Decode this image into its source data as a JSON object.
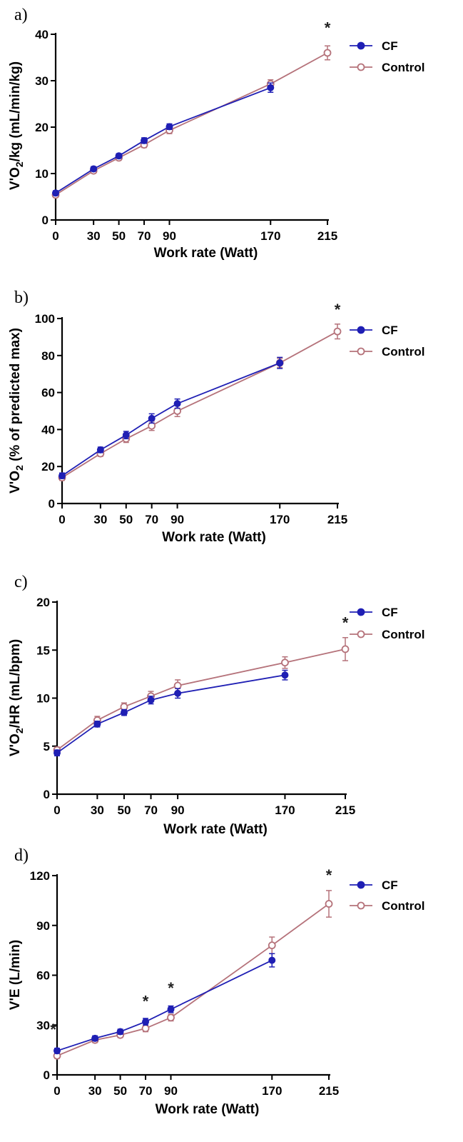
{
  "colors": {
    "cf": "#1f1fb4",
    "control": "#b5727a",
    "axis": "#000000"
  },
  "legend": [
    {
      "name": "CF",
      "marker": "filled-circle"
    },
    {
      "name": "Control",
      "marker": "open-circle"
    }
  ],
  "chart_data": [
    {
      "type": "line",
      "panel_label": "a)",
      "xlabel": "Work rate (Watt)",
      "ylabel": {
        "pre": "V'O",
        "sub": "2",
        "post": "/kg (mL/min/kg)"
      },
      "x_ticks": [
        "0",
        "30",
        "50",
        "70",
        "90",
        "170",
        "215"
      ],
      "ylim": [
        0,
        40
      ],
      "y_ticks": [
        "0",
        "10",
        "20",
        "30",
        "40"
      ],
      "series": [
        {
          "name": "CF",
          "x": [
            0,
            30,
            50,
            70,
            90,
            170
          ],
          "values": [
            5.8,
            11.0,
            13.8,
            17.1,
            20.1,
            28.5
          ],
          "err": [
            0.5,
            0.5,
            0.5,
            0.6,
            0.6,
            1.0
          ]
        },
        {
          "name": "Control",
          "x": [
            0,
            30,
            50,
            70,
            90,
            170,
            215
          ],
          "values": [
            5.4,
            10.6,
            13.4,
            16.2,
            19.3,
            29.3,
            36.0
          ],
          "err": [
            0.5,
            0.5,
            0.5,
            0.6,
            0.7,
            0.9,
            1.5
          ]
        }
      ],
      "significance": [
        {
          "x": 215,
          "y": 40.2,
          "text": "*"
        }
      ]
    },
    {
      "type": "line",
      "panel_label": "b)",
      "xlabel": "Work rate (Watt)",
      "ylabel": {
        "pre": "V'O",
        "sub": "2",
        "post": " (% of predicted max)"
      },
      "x_ticks": [
        "0",
        "30",
        "50",
        "70",
        "90",
        "170",
        "215"
      ],
      "ylim": [
        0,
        100
      ],
      "y_ticks": [
        "0",
        "20",
        "40",
        "60",
        "80",
        "100"
      ],
      "series": [
        {
          "name": "CF",
          "x": [
            0,
            30,
            50,
            70,
            90,
            170
          ],
          "values": [
            15,
            29,
            37,
            46,
            54,
            76
          ],
          "err": [
            1.5,
            1.5,
            2,
            2.5,
            2.5,
            3
          ]
        },
        {
          "name": "Control",
          "x": [
            0,
            30,
            50,
            70,
            90,
            170,
            215
          ],
          "values": [
            14,
            27,
            35,
            42,
            50,
            76,
            93
          ],
          "err": [
            1.5,
            1.5,
            2,
            2.5,
            3,
            2.5,
            4
          ]
        }
      ],
      "significance": [
        {
          "x": 215,
          "y": 102,
          "text": "*"
        }
      ]
    },
    {
      "type": "line",
      "panel_label": "c)",
      "xlabel": "Work rate (Watt)",
      "ylabel": {
        "pre": "V'O",
        "sub": "2",
        "post": "/HR (mL/bpm)"
      },
      "x_ticks": [
        "0",
        "30",
        "50",
        "70",
        "90",
        "170",
        "215"
      ],
      "ylim": [
        0,
        20
      ],
      "y_ticks": [
        "0",
        "5",
        "10",
        "15",
        "20"
      ],
      "series": [
        {
          "name": "CF",
          "x": [
            0,
            30,
            50,
            70,
            90,
            170
          ],
          "values": [
            4.3,
            7.3,
            8.5,
            9.8,
            10.5,
            12.4
          ],
          "err": [
            0.3,
            0.3,
            0.3,
            0.4,
            0.5,
            0.5
          ]
        },
        {
          "name": "Control",
          "x": [
            0,
            30,
            50,
            70,
            90,
            170,
            215
          ],
          "values": [
            4.6,
            7.7,
            9.1,
            10.2,
            11.3,
            13.7,
            15.1
          ],
          "err": [
            0.3,
            0.4,
            0.4,
            0.5,
            0.6,
            0.6,
            1.2
          ]
        }
      ],
      "significance": [
        {
          "x": 215,
          "y": 17.3,
          "text": "*"
        }
      ]
    },
    {
      "type": "line",
      "panel_label": "d)",
      "xlabel": "Work rate (Watt)",
      "ylabel": {
        "pre": "V'E (L/min)",
        "sub": "",
        "post": ""
      },
      "x_ticks": [
        "0",
        "30",
        "50",
        "70",
        "90",
        "170",
        "215"
      ],
      "ylim": [
        0,
        120
      ],
      "y_ticks": [
        "0",
        "30",
        "60",
        "90",
        "120"
      ],
      "series": [
        {
          "name": "CF",
          "x": [
            0,
            30,
            50,
            70,
            90,
            170
          ],
          "values": [
            14.5,
            22,
            26,
            32,
            39.5,
            69
          ],
          "err": [
            1.5,
            1.5,
            1.5,
            2,
            2,
            4
          ]
        },
        {
          "name": "Control",
          "x": [
            0,
            30,
            50,
            70,
            90,
            170,
            215
          ],
          "values": [
            11.5,
            21,
            24,
            28,
            34.5,
            78,
            103
          ],
          "err": [
            1.5,
            1.5,
            1.5,
            2,
            2,
            5,
            8
          ]
        }
      ],
      "significance": [
        {
          "x": -3,
          "y": 24,
          "text": "*"
        },
        {
          "x": 70,
          "y": 41,
          "text": "*"
        },
        {
          "x": 90,
          "y": 49,
          "text": "*"
        },
        {
          "x": 215,
          "y": 117,
          "text": "*"
        }
      ]
    }
  ]
}
